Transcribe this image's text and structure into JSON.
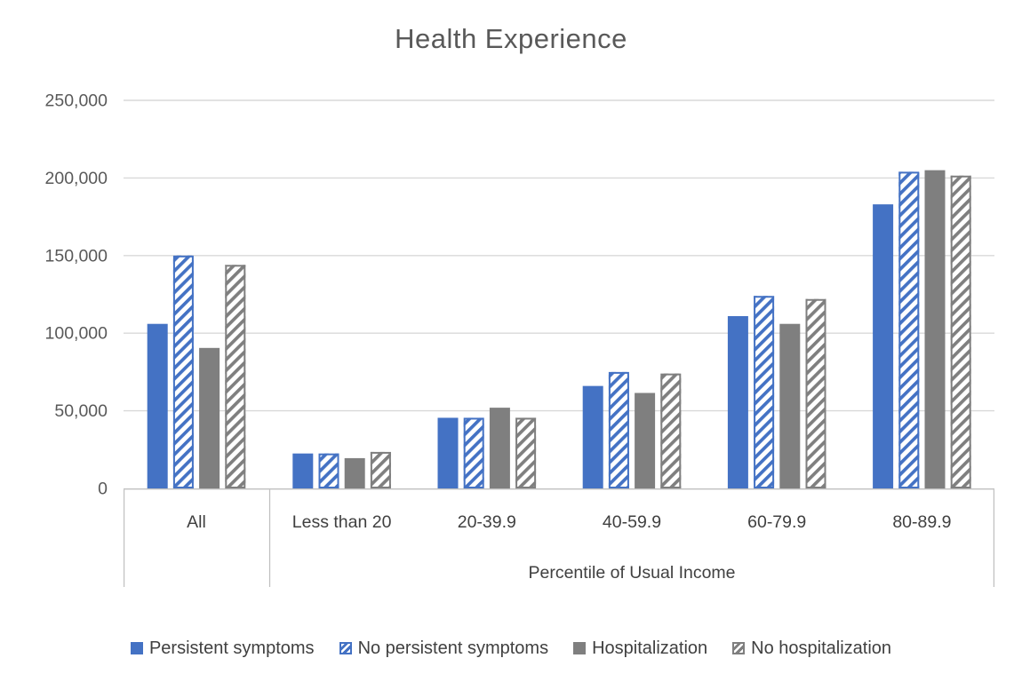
{
  "chart_data": {
    "type": "bar",
    "title": "Health Experience",
    "categories": [
      "All",
      "Less than 20",
      "20-39.9",
      "40-59.9",
      "60-79.9",
      "80-89.9"
    ],
    "x_axis_group_label": "Percentile of Usual Income",
    "x_axis_group_categories": [
      "Less than 20",
      "20-39.9",
      "40-59.9",
      "60-79.9",
      "80-89.9"
    ],
    "series": [
      {
        "name": "Persistent symptoms",
        "style": "solid",
        "color": "#4472C4",
        "values": [
          106000,
          22500,
          45500,
          66000,
          111000,
          183000
        ]
      },
      {
        "name": "No persistent symptoms",
        "style": "hatched",
        "color": "#4472C4",
        "values": [
          150000,
          22500,
          45500,
          75000,
          124000,
          204000
        ]
      },
      {
        "name": "Hospitalization",
        "style": "solid",
        "color": "#7F7F7F",
        "values": [
          90500,
          19500,
          52000,
          61500,
          106000,
          205000
        ]
      },
      {
        "name": "No hospitalization",
        "style": "hatched",
        "color": "#7F7F7F",
        "values": [
          144000,
          23500,
          45500,
          74000,
          122000,
          201500
        ]
      }
    ],
    "ylim": [
      0,
      250000
    ],
    "y_ticks": [
      {
        "value": 0,
        "label": "0"
      },
      {
        "value": 50000,
        "label": "50,000"
      },
      {
        "value": 100000,
        "label": "100,000"
      },
      {
        "value": 150000,
        "label": "150,000"
      },
      {
        "value": 200000,
        "label": "200,000"
      },
      {
        "value": 250000,
        "label": "250,000"
      }
    ],
    "grid": true,
    "legend_position": "bottom",
    "colors": {
      "gridline": "#D9D9D9",
      "axis": "#BFBFBF",
      "tick_text": "#595959",
      "title_text": "#595959",
      "label_text": "#404040"
    }
  }
}
